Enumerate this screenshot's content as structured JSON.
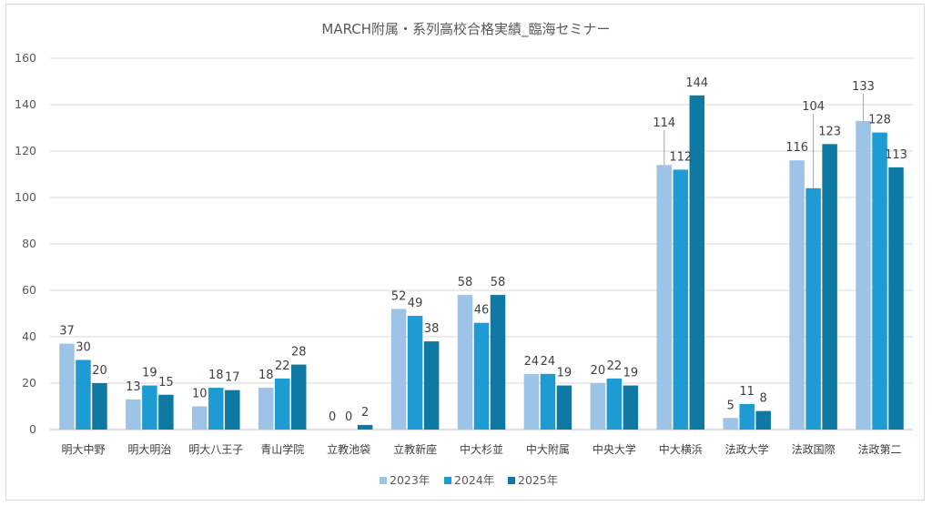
{
  "chart_data": {
    "type": "bar",
    "title": "MARCH附属・系列高校合格実績_臨海セミナー",
    "xlabel": "",
    "ylabel": "",
    "ylim": [
      0,
      160
    ],
    "yticks": [
      0,
      20,
      40,
      60,
      80,
      100,
      120,
      140,
      160
    ],
    "grid": true,
    "legend_position": "bottom",
    "categories": [
      "明大中野",
      "明大明治",
      "明大八王子",
      "青山学院",
      "立教池袋",
      "立教新座",
      "中大杉並",
      "中大附属",
      "中央大学",
      "中大横浜",
      "法政大学",
      "法政国際",
      "法政第二"
    ],
    "series": [
      {
        "name": "2023年",
        "color": "#9dc3e6",
        "values": [
          37,
          13,
          10,
          18,
          0,
          52,
          58,
          24,
          20,
          114,
          5,
          116,
          133
        ]
      },
      {
        "name": "2024年",
        "color": "#1f9bd4",
        "values": [
          30,
          19,
          18,
          22,
          0,
          49,
          46,
          24,
          22,
          112,
          11,
          104,
          128
        ]
      },
      {
        "name": "2025年",
        "color": "#0e7aa3",
        "values": [
          20,
          15,
          17,
          28,
          2,
          38,
          58,
          19,
          19,
          144,
          8,
          123,
          113
        ]
      }
    ]
  }
}
